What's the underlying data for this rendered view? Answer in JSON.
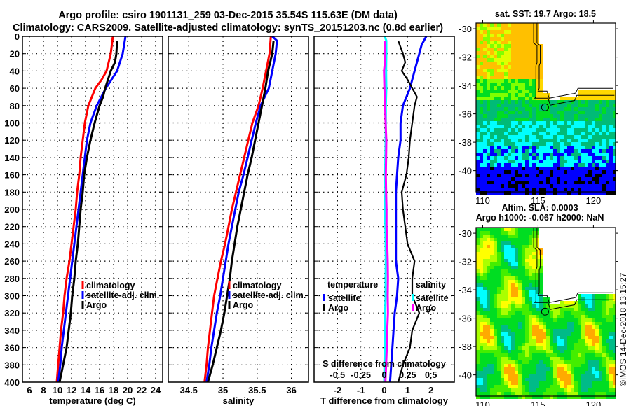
{
  "figure": {
    "title_line1": "Argo profile: csiro 1901131_259 03-Dec-2015 35.54S 115.63E (DM data)",
    "title_line2": "Climatology: CARS2009. Satellite-adjusted climatology: synTS_20151203.nc (0.8d earlier)",
    "copyright": "©IMOS 14-Dec-2018 13:15:27"
  },
  "colors": {
    "climatology": "#ff0000",
    "satellite": "#0000ff",
    "argo": "#000000",
    "salinity_satellite": "#00ffff",
    "salinity_argo": "#ff00ff"
  },
  "chart_data": [
    {
      "id": "temperature",
      "type": "line",
      "title": "",
      "xlabel": "temperature (deg C)",
      "ylabel": "",
      "xlim": [
        5,
        25
      ],
      "ylim": [
        400,
        0
      ],
      "xticks": [
        6,
        8,
        10,
        12,
        14,
        16,
        18,
        20,
        22,
        24
      ],
      "yticks": [
        0,
        20,
        40,
        60,
        80,
        100,
        120,
        140,
        160,
        180,
        200,
        220,
        240,
        260,
        280,
        300,
        320,
        340,
        360,
        380,
        400
      ],
      "grid": true,
      "legend": {
        "placement": "middle-right",
        "entries": [
          "climatology",
          "satellite-adj. clim.",
          "Argo"
        ]
      },
      "series": [
        {
          "name": "climatology",
          "color": "#ff0000",
          "depth": [
            0,
            20,
            40,
            50,
            60,
            80,
            100,
            120,
            140,
            160,
            180,
            200,
            220,
            240,
            260,
            280,
            300,
            320,
            340,
            360,
            380,
            400
          ],
          "values": [
            17.9,
            17.6,
            17.0,
            16.3,
            15.4,
            14.4,
            13.9,
            13.6,
            13.3,
            13.1,
            12.8,
            12.6,
            12.3,
            12.0,
            11.7,
            11.3,
            11.0,
            10.8,
            10.5,
            10.3,
            10.1,
            9.9
          ]
        },
        {
          "name": "satellite-adj. clim.",
          "color": "#0000ff",
          "depth": [
            0,
            20,
            40,
            50,
            60,
            80,
            100,
            120,
            140,
            160,
            180,
            200,
            220,
            240,
            260,
            280,
            300,
            320,
            340,
            360,
            380,
            400
          ],
          "values": [
            19.7,
            19.3,
            18.5,
            17.7,
            16.9,
            15.6,
            14.7,
            14.2,
            13.9,
            13.6,
            13.3,
            13.0,
            12.7,
            12.4,
            12.1,
            11.8,
            11.5,
            11.2,
            10.9,
            10.6,
            10.4,
            10.1
          ]
        },
        {
          "name": "Argo",
          "color": "#000000",
          "depth": [
            5,
            20,
            30,
            40,
            50,
            60,
            70,
            80,
            100,
            120,
            140,
            160,
            180,
            200,
            220,
            240,
            260,
            280,
            300,
            320,
            340,
            360,
            380,
            400
          ],
          "values": [
            18.5,
            18.4,
            18.2,
            17.6,
            17.2,
            16.8,
            16.5,
            16.0,
            15.3,
            14.7,
            14.2,
            13.8,
            13.6,
            13.3,
            13.1,
            12.9,
            12.6,
            12.4,
            12.1,
            11.9,
            11.6,
            11.3,
            10.8,
            10.3
          ]
        }
      ]
    },
    {
      "id": "salinity",
      "type": "line",
      "title": "",
      "xlabel": "salinity",
      "ylabel": "",
      "xlim": [
        34.2,
        36.25
      ],
      "ylim": [
        400,
        0
      ],
      "xticks": [
        34.5,
        35,
        35.5,
        36
      ],
      "xticklabels": [
        "34.5",
        "35",
        "35.5",
        "36"
      ],
      "grid": true,
      "legend": {
        "placement": "middle-right",
        "entries": [
          "climatology",
          "satellite-adj. clim.",
          "Argo"
        ]
      },
      "series": [
        {
          "name": "climatology",
          "color": "#ff0000",
          "depth": [
            0,
            20,
            40,
            60,
            80,
            100,
            120,
            140,
            160,
            180,
            200,
            220,
            240,
            260,
            280,
            300,
            320,
            340,
            360,
            380,
            400
          ],
          "values": [
            35.7,
            35.68,
            35.63,
            35.58,
            35.52,
            35.43,
            35.37,
            35.31,
            35.25,
            35.19,
            35.13,
            35.08,
            35.03,
            34.97,
            34.92,
            34.87,
            34.84,
            34.81,
            34.78,
            34.76,
            34.73
          ]
        },
        {
          "name": "satellite-adj. clim.",
          "color": "#0000ff",
          "depth": [
            0,
            5,
            20,
            40,
            60,
            80,
            100,
            120,
            140,
            160,
            180,
            200,
            220,
            240,
            260,
            280,
            300,
            320,
            340,
            360,
            380,
            400
          ],
          "values": [
            35.72,
            35.79,
            35.77,
            35.72,
            35.67,
            35.55,
            35.48,
            35.42,
            35.36,
            35.3,
            35.23,
            35.18,
            35.13,
            35.08,
            35.04,
            35.0,
            34.96,
            34.91,
            34.87,
            34.83,
            34.8,
            34.76
          ]
        },
        {
          "name": "Argo",
          "color": "#000000",
          "depth": [
            5,
            20,
            40,
            60,
            80,
            100,
            120,
            140,
            160,
            180,
            200,
            220,
            240,
            260,
            280,
            300,
            320,
            340,
            360,
            380,
            400
          ],
          "values": [
            35.74,
            35.72,
            35.66,
            35.62,
            35.57,
            35.52,
            35.47,
            35.42,
            35.36,
            35.31,
            35.26,
            35.21,
            35.17,
            35.13,
            35.1,
            35.06,
            35.02,
            34.97,
            34.91,
            34.85,
            34.78
          ]
        }
      ]
    },
    {
      "id": "difference",
      "type": "line",
      "title": "",
      "xlabel": "T difference from climatology",
      "xlabel_top_axis": "S difference from climatology",
      "xlim": [
        -3,
        3
      ],
      "xticks": [
        -2,
        -1,
        0,
        1,
        2
      ],
      "s_xlim": [
        -0.75,
        0.75
      ],
      "s_xticks": [
        -0.5,
        -0.25,
        0,
        0.25,
        0.5
      ],
      "s_xticklabels": [
        "-0.5",
        "-0.25",
        "0",
        "0.25",
        "0.5"
      ],
      "ylim": [
        400,
        0
      ],
      "grid": true,
      "legend_left": {
        "placement": "middle-left",
        "title": "temperature",
        "entries": [
          "satellite",
          "Argo"
        ]
      },
      "legend_right": {
        "placement": "middle-right",
        "title": "salinity",
        "entries": [
          "satellite",
          "Argo"
        ]
      },
      "series": [
        {
          "name": "temperature satellite",
          "color": "#0000ff",
          "depth": [
            0,
            10,
            20,
            40,
            60,
            80,
            100,
            120,
            140,
            160,
            180,
            200,
            220,
            240,
            260,
            280,
            300,
            320,
            340,
            360,
            380,
            400
          ],
          "values": [
            1.8,
            1.6,
            1.5,
            1.3,
            1.1,
            0.8,
            0.7,
            0.7,
            0.6,
            0.55,
            0.5,
            0.5,
            0.5,
            0.5,
            0.5,
            0.6,
            0.55,
            0.45,
            0.4,
            0.35,
            0.3,
            0.25
          ]
        },
        {
          "name": "temperature Argo",
          "color": "#000000",
          "depth": [
            5,
            20,
            30,
            40,
            50,
            60,
            70,
            80,
            100,
            120,
            140,
            160,
            180,
            200,
            220,
            240,
            260,
            280,
            300,
            320,
            340,
            360,
            380,
            400
          ],
          "values": [
            0.6,
            0.8,
            0.9,
            0.75,
            1.0,
            1.2,
            1.4,
            1.3,
            1.2,
            1.1,
            1.05,
            0.95,
            0.75,
            0.8,
            0.9,
            1.0,
            1.3,
            1.2,
            1.2,
            1.5,
            1.2,
            1.1,
            0.8,
            0.6
          ]
        },
        {
          "name": "salinity satellite",
          "color": "#00ffff",
          "depth": [
            0,
            5,
            20,
            40,
            60,
            80,
            100,
            120,
            140,
            160,
            180,
            200,
            220,
            240,
            260,
            280,
            300,
            320,
            340,
            360,
            380,
            400
          ],
          "values": [
            0.02,
            0.09,
            0.09,
            0.08,
            0.09,
            0.07,
            0.07,
            0.06,
            0.05,
            0.04,
            0.05,
            0.03,
            0.05,
            0.06,
            0.07,
            0.06,
            0.06,
            0.04,
            0.03,
            0.02,
            0.01,
            0.0
          ]
        },
        {
          "name": "salinity Argo",
          "color": "#ff00ff",
          "depth": [
            5,
            20,
            30,
            40,
            60,
            80,
            100,
            120,
            140,
            160,
            180,
            200,
            220,
            240,
            260,
            280,
            300,
            320,
            340,
            360,
            380,
            400
          ],
          "values": [
            0.04,
            0.04,
            0.03,
            -0.01,
            0.01,
            0.04,
            0.06,
            0.09,
            0.08,
            0.07,
            0.08,
            0.1,
            0.1,
            0.13,
            0.15,
            0.16,
            0.15,
            0.16,
            0.13,
            0.11,
            0.08,
            0.05
          ]
        }
      ]
    },
    {
      "id": "sst-map",
      "type": "heatmap",
      "title": "sat. SST: 19.7 Argo: 18.5",
      "xlim": [
        109.4,
        122
      ],
      "ylim": [
        -41.5,
        -29.6
      ],
      "xticks": [
        110,
        115,
        120
      ],
      "yticks": [
        -30,
        -32,
        -34,
        -36,
        -38,
        -40
      ],
      "marker": {
        "lon": 115.63,
        "lat": -35.54
      },
      "colorbands": [
        "#ffc000",
        "#ffd800",
        "#e0ff00",
        "#80ff00",
        "#00dd22",
        "#00bb77",
        "#00ffff",
        "#0000ff",
        "#000000"
      ]
    },
    {
      "id": "sla-map",
      "type": "heatmap",
      "title": "Altim. SLA: 0.0003",
      "subtitle": "Argo h1000: -0.067 h2000: NaN",
      "xlim": [
        109.4,
        122
      ],
      "ylim": [
        -41.5,
        -29.6
      ],
      "xticks": [
        110,
        115,
        120
      ],
      "yticks": [
        -30,
        -32,
        -34,
        -36,
        -38,
        -40
      ],
      "marker": {
        "lon": 115.63,
        "lat": -35.54
      },
      "colorbands": [
        "#00ffff",
        "#00bb88",
        "#00dd22",
        "#44ee00",
        "#aaff00",
        "#ffff00",
        "#ffaa00"
      ]
    }
  ]
}
